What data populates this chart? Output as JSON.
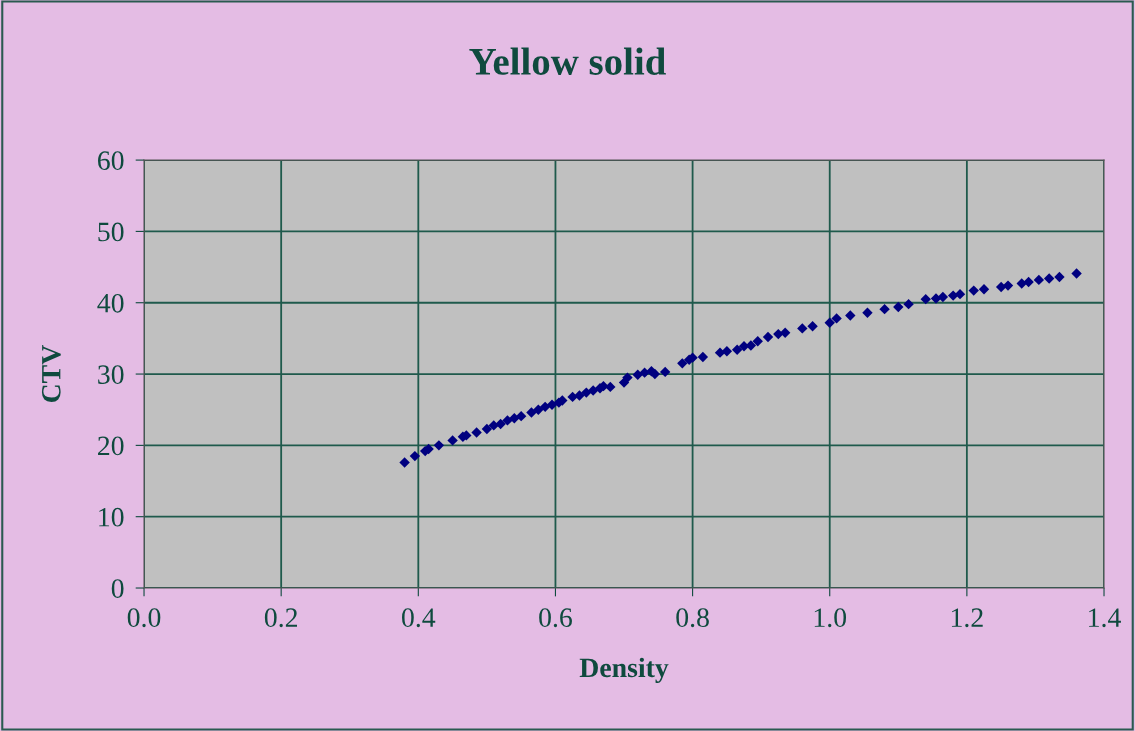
{
  "chart_data": {
    "type": "scatter",
    "title": "Yellow solid",
    "xlabel": "Density",
    "ylabel": "CTV",
    "x": [
      0.38,
      0.395,
      0.41,
      0.415,
      0.43,
      0.45,
      0.465,
      0.47,
      0.485,
      0.5,
      0.51,
      0.52,
      0.53,
      0.54,
      0.55,
      0.565,
      0.575,
      0.585,
      0.595,
      0.605,
      0.61,
      0.625,
      0.635,
      0.645,
      0.655,
      0.665,
      0.67,
      0.68,
      0.7,
      0.705,
      0.72,
      0.73,
      0.74,
      0.745,
      0.76,
      0.785,
      0.795,
      0.8,
      0.815,
      0.84,
      0.85,
      0.865,
      0.875,
      0.885,
      0.895,
      0.91,
      0.925,
      0.935,
      0.96,
      0.975,
      1.0,
      1.01,
      1.03,
      1.055,
      1.08,
      1.1,
      1.115,
      1.14,
      1.155,
      1.165,
      1.18,
      1.19,
      1.21,
      1.225,
      1.25,
      1.26,
      1.28,
      1.29,
      1.305,
      1.32,
      1.335,
      1.36
    ],
    "series": [
      {
        "color": "#000080",
        "values": [
          17.6,
          18.5,
          19.2,
          19.5,
          20.0,
          20.7,
          21.2,
          21.4,
          21.8,
          22.3,
          22.8,
          23.0,
          23.5,
          23.8,
          24.1,
          24.6,
          25.0,
          25.4,
          25.7,
          26.0,
          26.3,
          26.8,
          27.0,
          27.4,
          27.7,
          28.0,
          28.3,
          28.2,
          28.8,
          29.5,
          29.9,
          30.2,
          30.4,
          30.0,
          30.3,
          31.5,
          32.0,
          32.3,
          32.4,
          33.0,
          33.2,
          33.4,
          33.9,
          34.0,
          34.6,
          35.2,
          35.6,
          35.8,
          36.4,
          36.7,
          37.2,
          37.8,
          38.2,
          38.6,
          39.1,
          39.4,
          39.8,
          40.5,
          40.6,
          40.8,
          41.0,
          41.2,
          41.7,
          41.9,
          42.2,
          42.4,
          42.7,
          42.9,
          43.2,
          43.4,
          43.6,
          44.1
        ]
      }
    ],
    "xlim": [
      0,
      1.4
    ],
    "xticks": [
      {
        "value": 0,
        "label": "0.0"
      },
      {
        "value": 0.2,
        "label": "0.2"
      },
      {
        "value": 0.4,
        "label": "0.4"
      },
      {
        "value": 0.6,
        "label": "0.6"
      },
      {
        "value": 0.8,
        "label": "0.8"
      },
      {
        "value": 1.0,
        "label": "1.0"
      },
      {
        "value": 1.2,
        "label": "1.2"
      },
      {
        "value": 1.4,
        "label": "1.4"
      }
    ],
    "ylim": [
      0,
      60
    ],
    "yticks": [
      0,
      10,
      20,
      30,
      40,
      50,
      60
    ],
    "grid": true,
    "marker": "diamond"
  }
}
